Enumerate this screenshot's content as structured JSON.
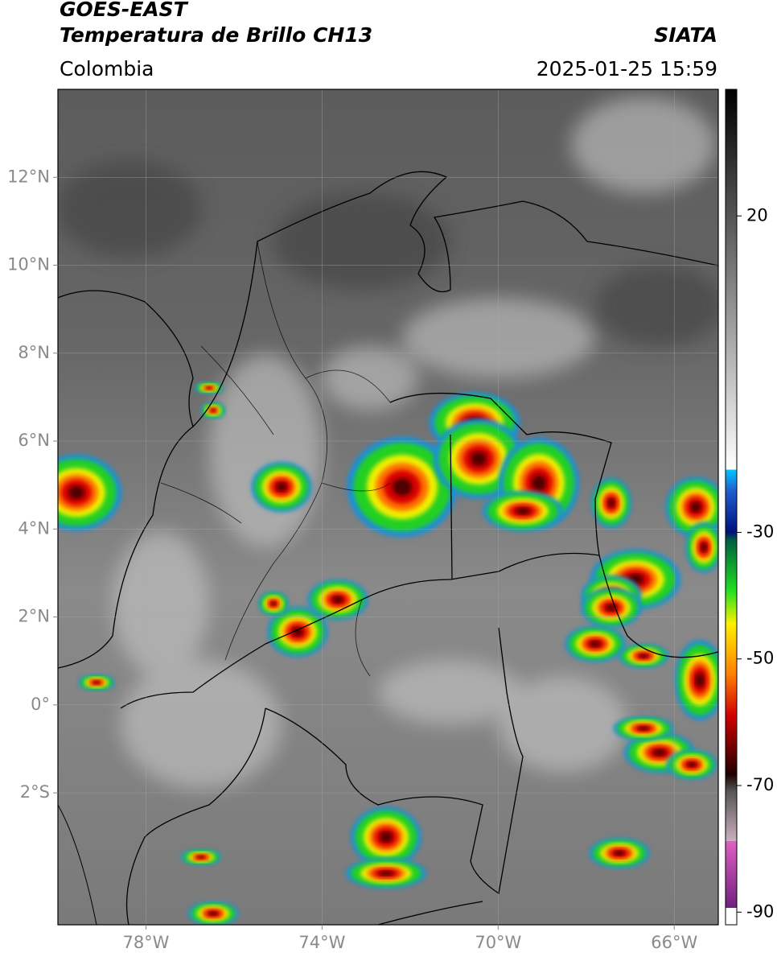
{
  "header": {
    "title": "GOES-EAST",
    "subtitle": "Temperatura de Brillo CH13",
    "source": "SIATA",
    "region": "Colombia",
    "datetime": "2025-01-25 15:59"
  },
  "map": {
    "xlim": [
      -80,
      -65
    ],
    "ylim": [
      -5,
      14
    ],
    "xticks": [
      {
        "value": -78,
        "label": "78°W"
      },
      {
        "value": -74,
        "label": "74°W"
      },
      {
        "value": -70,
        "label": "70°W"
      },
      {
        "value": -66,
        "label": "66°W"
      }
    ],
    "yticks": [
      {
        "value": 12,
        "label": "12°N"
      },
      {
        "value": 10,
        "label": "10°N"
      },
      {
        "value": 8,
        "label": "8°N"
      },
      {
        "value": 6,
        "label": "6°N"
      },
      {
        "value": 4,
        "label": "4°N"
      },
      {
        "value": 2,
        "label": "2°N"
      },
      {
        "value": 0,
        "label": "0°"
      },
      {
        "value": -2,
        "label": "2°S"
      }
    ],
    "grid": true
  },
  "colorbar": {
    "lim": [
      -92,
      40
    ],
    "ticks": [
      20,
      -30,
      -50,
      -70,
      -90
    ]
  }
}
